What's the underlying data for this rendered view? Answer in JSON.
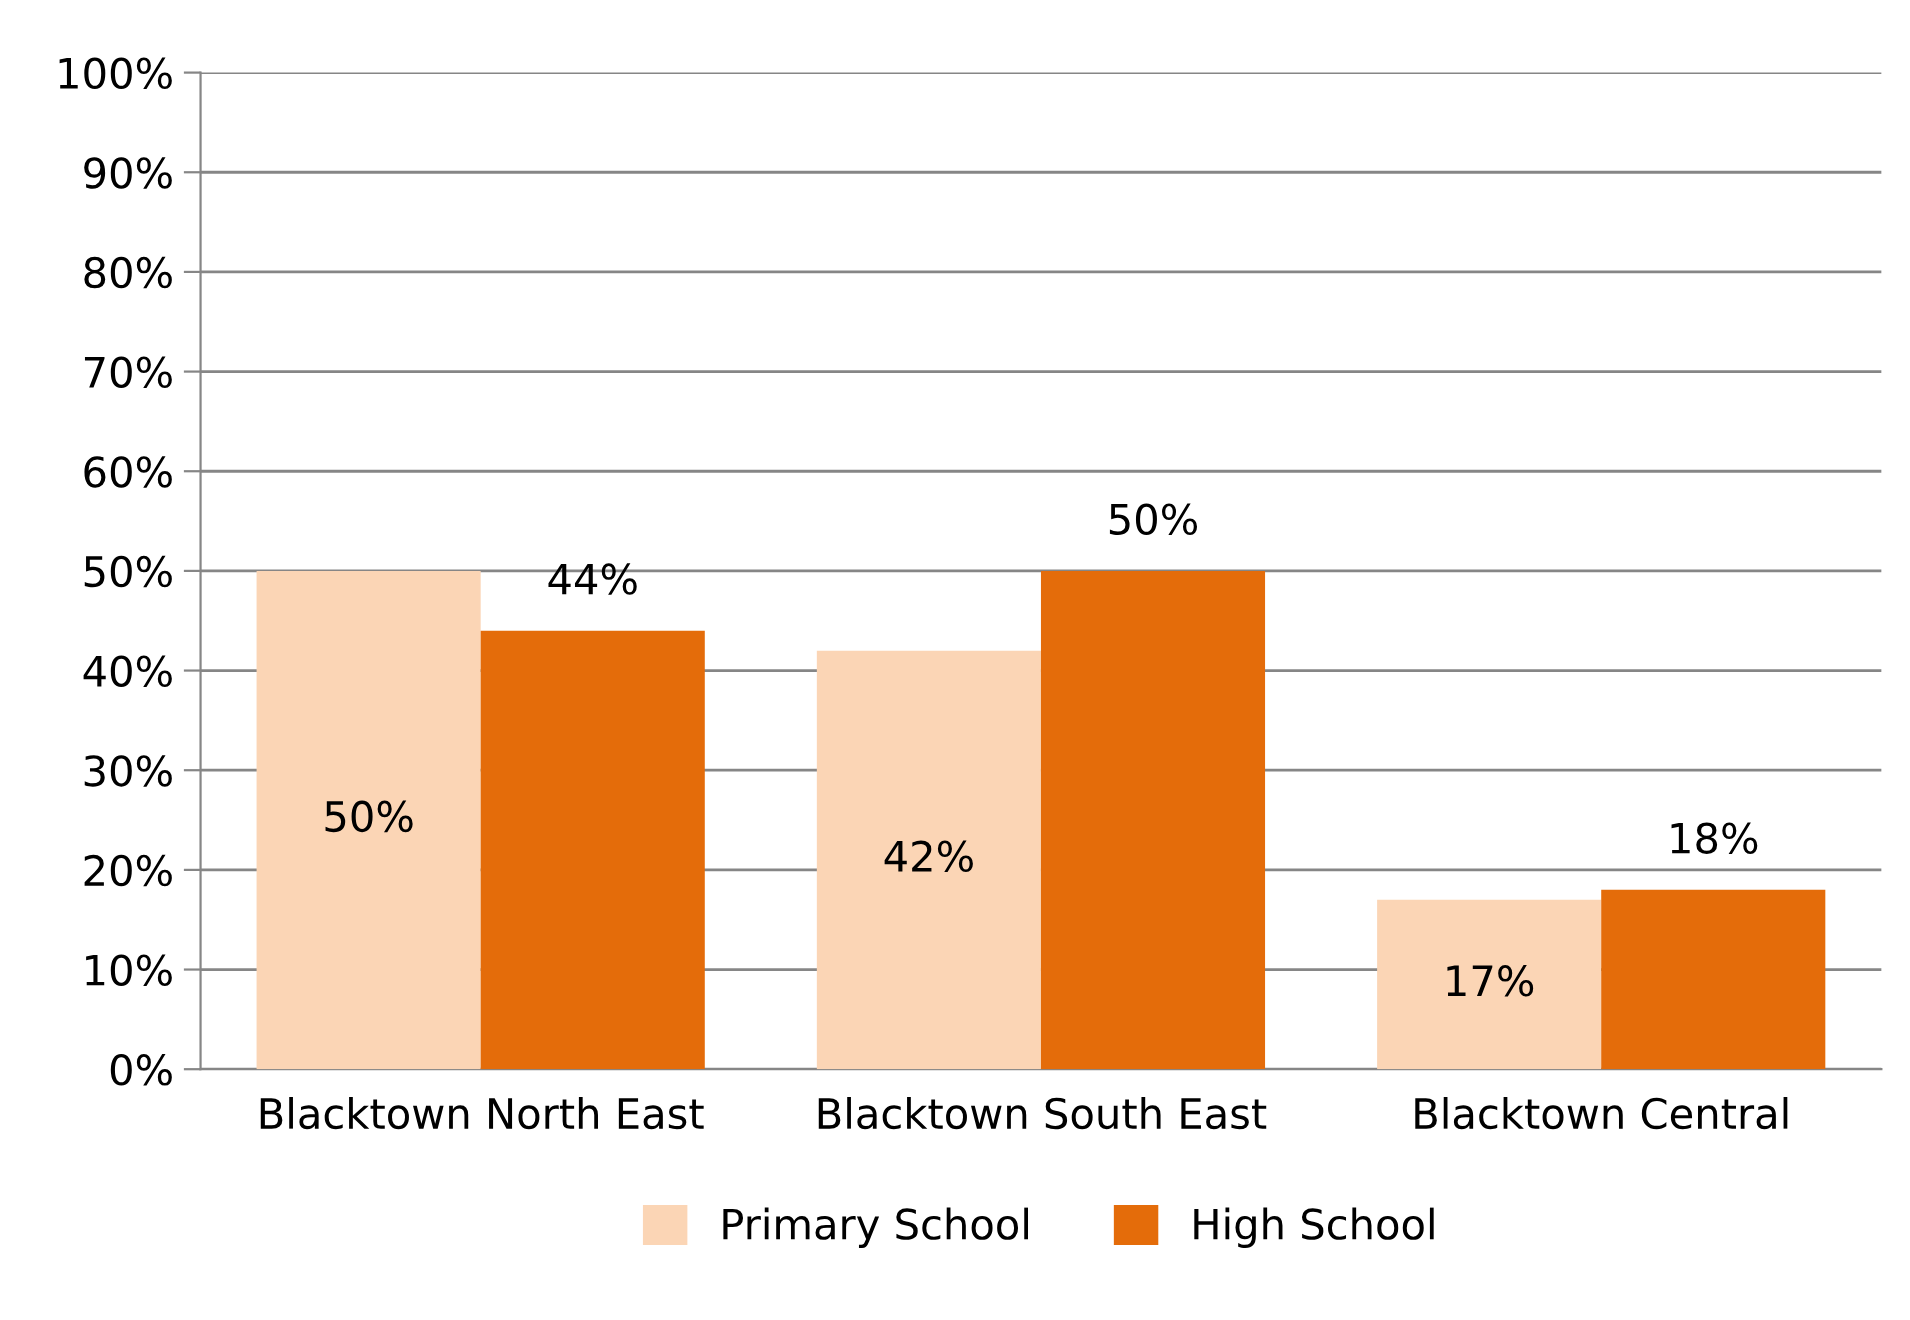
{
  "chart_data": {
    "type": "bar",
    "categories": [
      "Blacktown North East",
      "Blacktown South East",
      "Blacktown Central"
    ],
    "series": [
      {
        "name": "Primary School",
        "color": "#fbd5b5",
        "values": [
          50,
          42,
          17
        ],
        "value_labels": [
          "50%",
          "42%",
          "17%"
        ]
      },
      {
        "name": "High School",
        "color": "#e46c0a",
        "values": [
          44,
          50,
          18
        ],
        "value_labels": [
          "44%",
          "50%",
          "18%"
        ]
      }
    ],
    "ylim": [
      0,
      100
    ],
    "yticks": [
      {
        "value": 0,
        "label": "0%"
      },
      {
        "value": 10,
        "label": "10%"
      },
      {
        "value": 20,
        "label": "20%"
      },
      {
        "value": 30,
        "label": "30%"
      },
      {
        "value": 40,
        "label": "40%"
      },
      {
        "value": 50,
        "label": "50%"
      },
      {
        "value": 60,
        "label": "60%"
      },
      {
        "value": 70,
        "label": "70%"
      },
      {
        "value": 80,
        "label": "80%"
      },
      {
        "value": 90,
        "label": "90%"
      },
      {
        "value": 100,
        "label": "100%"
      }
    ],
    "grid": "y",
    "legend": "bottom"
  }
}
